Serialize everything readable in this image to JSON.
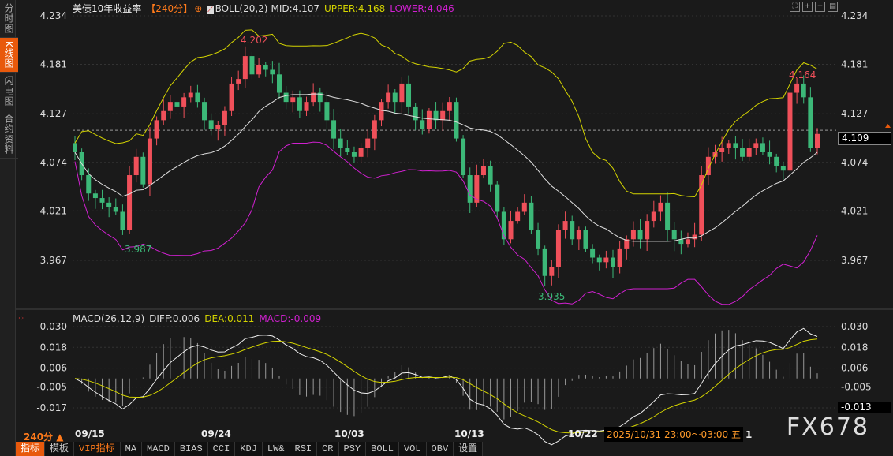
{
  "sidebar": {
    "items": [
      {
        "label": "分时图"
      },
      {
        "label": "K线图",
        "active": true
      },
      {
        "label": "闪电图"
      },
      {
        "label": "合约资料"
      }
    ]
  },
  "header": {
    "title": "美债10年收益率",
    "period": "【240分】",
    "indicator": "BOLL(20,2)",
    "mid": "MID:4.107",
    "upper": "UPPER:4.168",
    "lower": "LOWER:4.046"
  },
  "macd_header": {
    "name": "MACD(26,12,9)",
    "diff": "DIFF:0.006",
    "dea": "DEA:0.011",
    "macd": "MACD:-0.009"
  },
  "colors": {
    "up": "#f0505a",
    "down": "#3cb878",
    "mid": "#e0e0e0",
    "upper": "#d4d400",
    "lower": "#d020d0",
    "accent": "#e8590c"
  },
  "price_axis": [
    "4.234",
    "4.181",
    "4.127",
    "4.074",
    "4.021",
    "3.967"
  ],
  "macd_axis": [
    "0.030",
    "0.018",
    "0.006",
    "-0.005",
    "-0.017"
  ],
  "current_price": "4.109",
  "current_macd": "-0.013",
  "annotations": {
    "high1": "4.202",
    "high2": "4.164",
    "low1": "3.987",
    "low2": "3.935"
  },
  "dates": [
    "09/15",
    "09/24",
    "10/03",
    "10/13",
    "10/22"
  ],
  "tooltip": "2025/10/31 23:00～03:00 五",
  "date_tail": "1",
  "period_selector": "240分 ▲",
  "logo": "FX678",
  "tabs": [
    "指标",
    "模板",
    "VIP指标",
    "MA",
    "MACD",
    "BIAS",
    "CCI",
    "KDJ",
    "LW&",
    "RSI",
    "CR",
    "PSY",
    "BOLL",
    "VOL",
    "OBV",
    "设置"
  ],
  "chart_data": {
    "type": "candlestick",
    "ylim": [
      3.935,
      4.234
    ],
    "closes": [
      4.085,
      4.06,
      4.04,
      4.035,
      4.03,
      4.025,
      4.02,
      4.0,
      4.06,
      4.08,
      4.05,
      4.1,
      4.12,
      4.13,
      4.14,
      4.135,
      4.145,
      4.15,
      4.14,
      4.12,
      4.11,
      4.115,
      4.13,
      4.16,
      4.165,
      4.19,
      4.17,
      4.18,
      4.175,
      4.17,
      4.15,
      4.14,
      4.145,
      4.13,
      4.14,
      4.15,
      4.14,
      4.12,
      4.1,
      4.09,
      4.085,
      4.08,
      4.09,
      4.1,
      4.12,
      4.14,
      4.15,
      4.14,
      4.16,
      4.135,
      4.12,
      4.11,
      4.13,
      4.12,
      4.13,
      4.14,
      4.1,
      4.06,
      4.03,
      4.06,
      4.07,
      4.05,
      4.02,
      3.99,
      4.01,
      4.02,
      4.03,
      4.0,
      3.98,
      3.95,
      3.96,
      4.0,
      4.01,
      3.99,
      4.0,
      3.98,
      3.97,
      3.965,
      3.97,
      3.96,
      3.98,
      3.99,
      4.0,
      3.99,
      4.01,
      4.02,
      4.03,
      4.0,
      3.99,
      3.985,
      3.99,
      3.995,
      4.06,
      4.08,
      4.085,
      4.09,
      4.095,
      4.09,
      4.08,
      4.09,
      4.095,
      4.085,
      4.08,
      4.07,
      4.065,
      4.15,
      4.16,
      4.145,
      4.09,
      4.105
    ]
  }
}
